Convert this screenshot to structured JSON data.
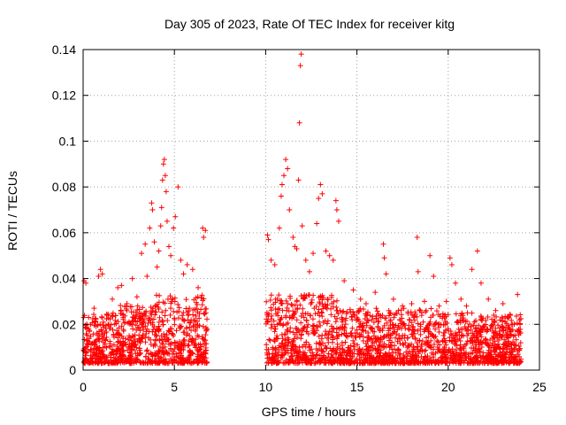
{
  "chart_data": {
    "type": "scatter",
    "title": "Day 305 of 2023, Rate Of TEC Index for receiver kitg",
    "xlabel": "GPS time / hours",
    "ylabel": "ROTI / TECUs",
    "xlim": [
      0,
      25
    ],
    "ylim": [
      0,
      0.14
    ],
    "xticks": [
      "0",
      "5",
      "10",
      "15",
      "20",
      "25"
    ],
    "yticks": [
      "0",
      "0.02",
      "0.04",
      "0.06",
      "0.08",
      "0.1",
      "0.12",
      "0.14"
    ],
    "grid": true,
    "marker": "plus",
    "color": "#ff0000",
    "data_gap_hours": [
      6.8,
      10.0
    ],
    "series": [
      {
        "points": [
          [
            0.05,
            0.039
          ],
          [
            0.15,
            0.038
          ],
          [
            0.3,
            0.023
          ],
          [
            0.6,
            0.027
          ],
          [
            0.85,
            0.041
          ],
          [
            0.95,
            0.044
          ],
          [
            1.05,
            0.042
          ],
          [
            1.3,
            0.024
          ],
          [
            1.6,
            0.031
          ],
          [
            1.9,
            0.036
          ],
          [
            2.1,
            0.037
          ],
          [
            2.4,
            0.029
          ],
          [
            2.7,
            0.04
          ],
          [
            2.95,
            0.032
          ],
          [
            3.2,
            0.051
          ],
          [
            3.4,
            0.055
          ],
          [
            3.5,
            0.041
          ],
          [
            3.65,
            0.062
          ],
          [
            3.75,
            0.073
          ],
          [
            3.8,
            0.07
          ],
          [
            3.9,
            0.056
          ],
          [
            4.05,
            0.045
          ],
          [
            4.15,
            0.052
          ],
          [
            4.25,
            0.063
          ],
          [
            4.3,
            0.071
          ],
          [
            4.35,
            0.083
          ],
          [
            4.4,
            0.09
          ],
          [
            4.45,
            0.092
          ],
          [
            4.5,
            0.085
          ],
          [
            4.55,
            0.078
          ],
          [
            4.6,
            0.065
          ],
          [
            4.7,
            0.054
          ],
          [
            4.8,
            0.05
          ],
          [
            4.95,
            0.062
          ],
          [
            5.05,
            0.067
          ],
          [
            5.2,
            0.08
          ],
          [
            5.35,
            0.048
          ],
          [
            5.5,
            0.042
          ],
          [
            5.7,
            0.046
          ],
          [
            6.0,
            0.044
          ],
          [
            6.3,
            0.036
          ],
          [
            6.55,
            0.062
          ],
          [
            6.6,
            0.058
          ],
          [
            6.7,
            0.061
          ],
          [
            10.1,
            0.059
          ],
          [
            10.15,
            0.057
          ],
          [
            10.3,
            0.048
          ],
          [
            10.5,
            0.046
          ],
          [
            10.75,
            0.062
          ],
          [
            10.85,
            0.076
          ],
          [
            10.9,
            0.081
          ],
          [
            11.0,
            0.085
          ],
          [
            11.1,
            0.092
          ],
          [
            11.2,
            0.088
          ],
          [
            11.3,
            0.07
          ],
          [
            11.5,
            0.058
          ],
          [
            11.6,
            0.054
          ],
          [
            11.7,
            0.053
          ],
          [
            11.8,
            0.083
          ],
          [
            11.85,
            0.108
          ],
          [
            11.9,
            0.133
          ],
          [
            11.95,
            0.138
          ],
          [
            12.0,
            0.063
          ],
          [
            12.2,
            0.048
          ],
          [
            12.4,
            0.043
          ],
          [
            12.6,
            0.051
          ],
          [
            12.8,
            0.064
          ],
          [
            12.9,
            0.075
          ],
          [
            13.0,
            0.081
          ],
          [
            13.1,
            0.077
          ],
          [
            13.3,
            0.052
          ],
          [
            13.5,
            0.05
          ],
          [
            13.7,
            0.048
          ],
          [
            13.85,
            0.074
          ],
          [
            13.9,
            0.07
          ],
          [
            14.0,
            0.065
          ],
          [
            14.3,
            0.039
          ],
          [
            14.8,
            0.035
          ],
          [
            15.2,
            0.031
          ],
          [
            15.5,
            0.029
          ],
          [
            16.0,
            0.034
          ],
          [
            16.45,
            0.055
          ],
          [
            16.5,
            0.049
          ],
          [
            16.6,
            0.042
          ],
          [
            17.0,
            0.031
          ],
          [
            17.5,
            0.028
          ],
          [
            18.0,
            0.029
          ],
          [
            18.3,
            0.058
          ],
          [
            18.35,
            0.043
          ],
          [
            18.7,
            0.03
          ],
          [
            19.0,
            0.05
          ],
          [
            19.2,
            0.041
          ],
          [
            19.5,
            0.028
          ],
          [
            19.9,
            0.03
          ],
          [
            20.1,
            0.049
          ],
          [
            20.2,
            0.046
          ],
          [
            20.4,
            0.038
          ],
          [
            20.7,
            0.031
          ],
          [
            21.0,
            0.028
          ],
          [
            21.3,
            0.044
          ],
          [
            21.6,
            0.052
          ],
          [
            21.8,
            0.038
          ],
          [
            22.2,
            0.031
          ],
          [
            22.6,
            0.026
          ],
          [
            23.0,
            0.029
          ],
          [
            23.4,
            0.024
          ],
          [
            23.8,
            0.033
          ],
          [
            23.9,
            0.022
          ]
        ]
      }
    ]
  }
}
